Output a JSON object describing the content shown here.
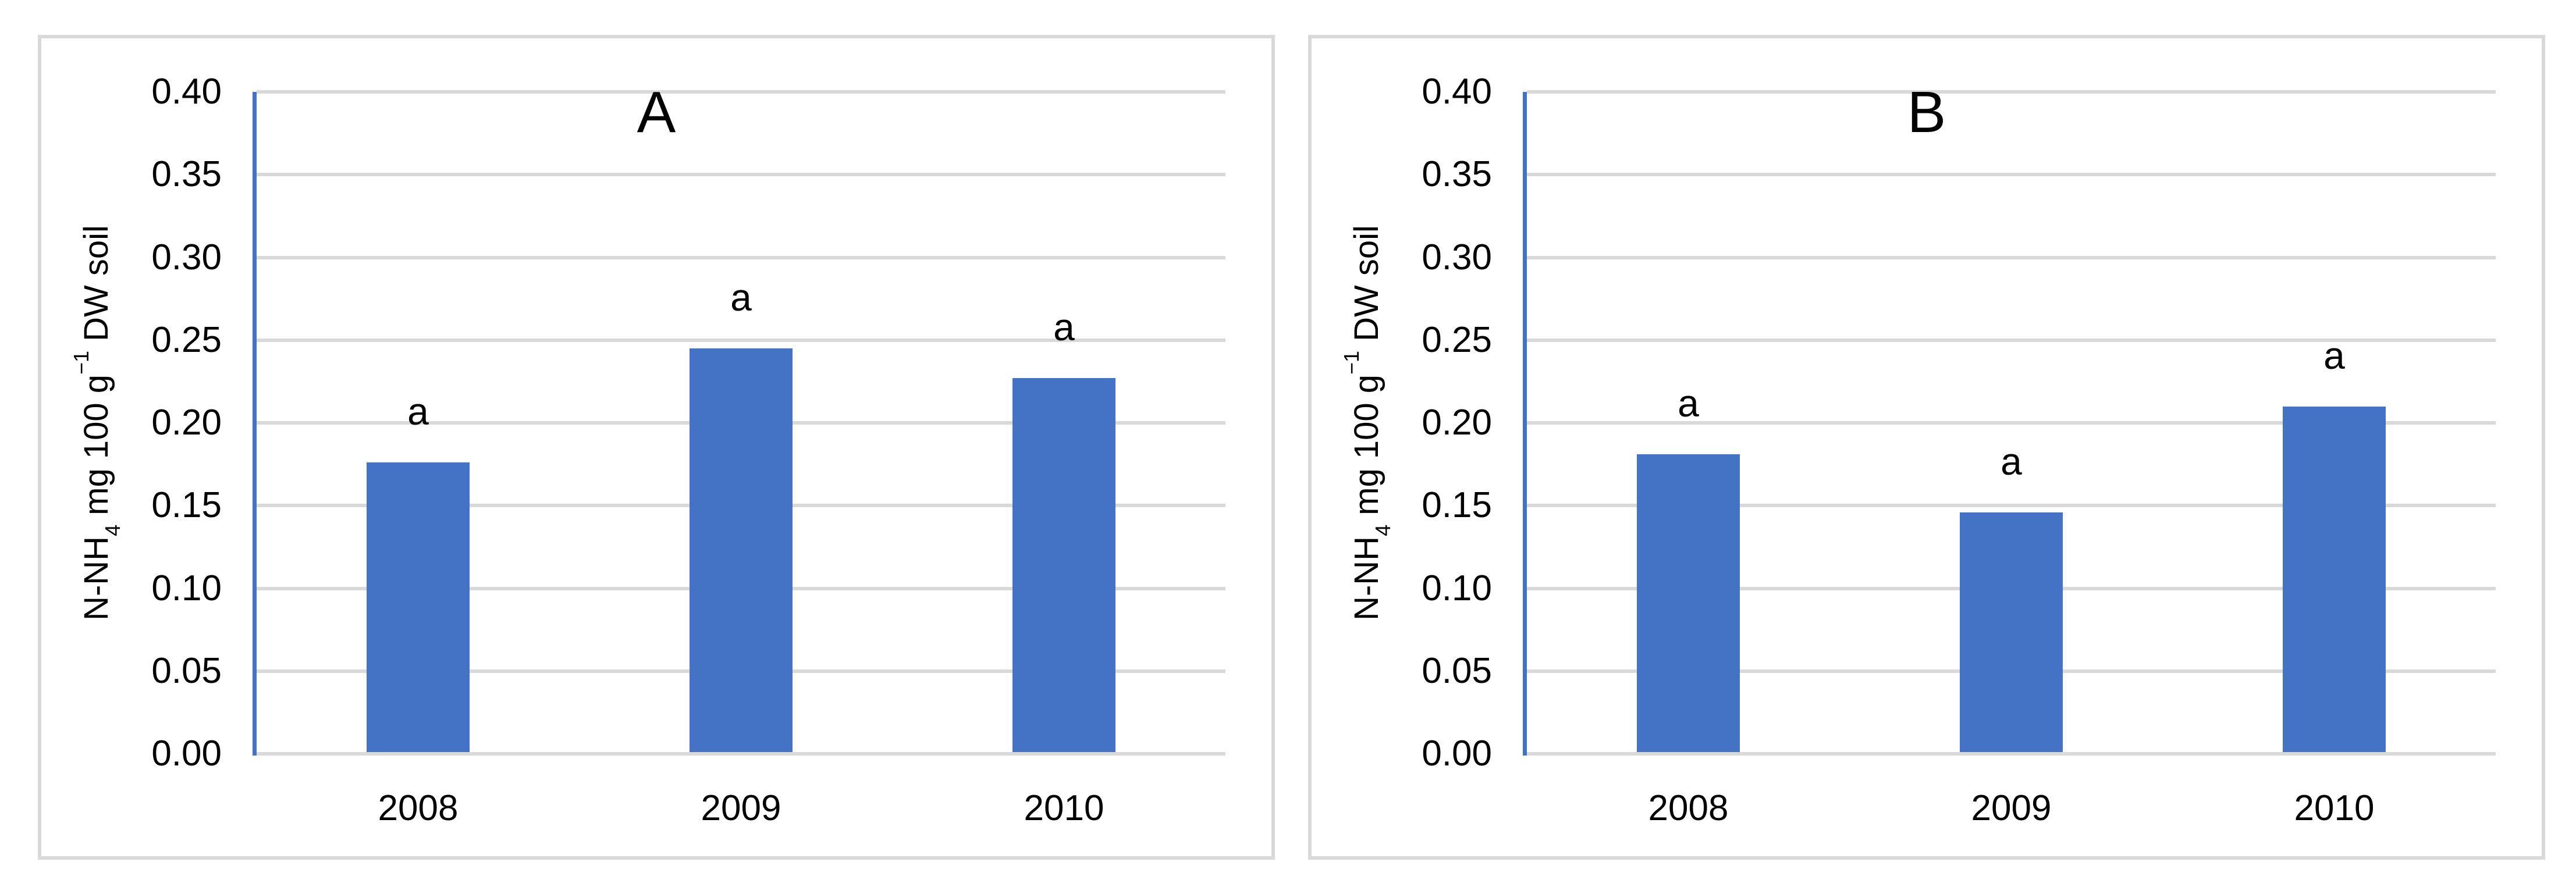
{
  "figure": {
    "background": "#ffffff",
    "panel_border_color": "#d9d9d9",
    "gridline_color": "#d9d9d9",
    "bar_color": "#4472c4",
    "y_axis_line_color": "#4472c4",
    "text_color": "#000000"
  },
  "ylabel_parts": {
    "p1": "N-NH",
    "sub": "4",
    "p2": " mg 100 g",
    "sup": "−1",
    "p3": " DW soil"
  },
  "chart_data": [
    {
      "type": "bar",
      "title": "A",
      "categories": [
        "2008",
        "2009",
        "2010"
      ],
      "values": [
        0.176,
        0.245,
        0.227
      ],
      "bar_labels": [
        "a",
        "a",
        "a"
      ],
      "ylabel": "N-NH4 mg 100 g−1 DW soil",
      "xlabel": "",
      "ylim": [
        0,
        0.4
      ],
      "ytick_step": 0.05,
      "ytick_labels": [
        "0.40",
        "0.35",
        "0.30",
        "0.25",
        "0.20",
        "0.15",
        "0.10",
        "0.05",
        "0.00"
      ],
      "grid": true,
      "legend": false,
      "bar_color": "#4472c4"
    },
    {
      "type": "bar",
      "title": "B",
      "categories": [
        "2008",
        "2009",
        "2010"
      ],
      "values": [
        0.181,
        0.146,
        0.21
      ],
      "bar_labels": [
        "a",
        "a",
        "a"
      ],
      "ylabel": "N-NH4 mg 100 g−1 DW soil",
      "xlabel": "",
      "ylim": [
        0,
        0.4
      ],
      "ytick_step": 0.05,
      "ytick_labels": [
        "0.40",
        "0.35",
        "0.30",
        "0.25",
        "0.20",
        "0.15",
        "0.10",
        "0.05",
        "0.00"
      ],
      "grid": true,
      "legend": false,
      "bar_color": "#4472c4"
    }
  ]
}
